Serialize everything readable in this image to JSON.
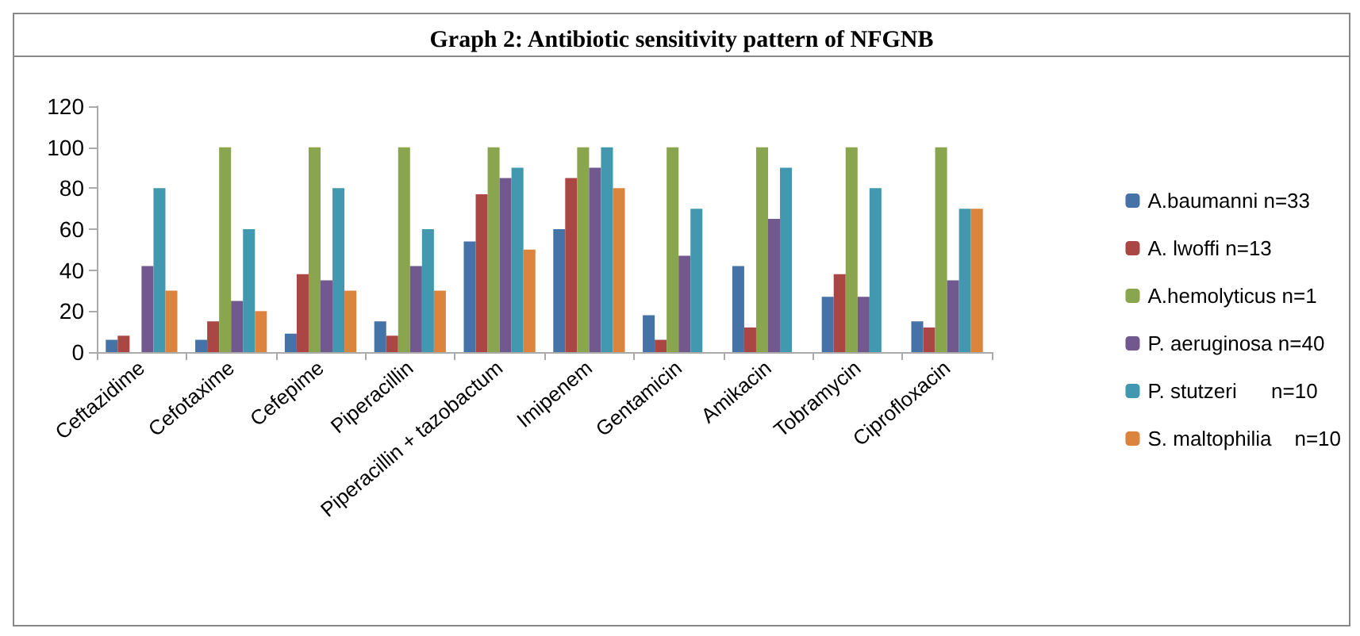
{
  "chart_data": {
    "type": "bar",
    "title": "Graph 2: Antibiotic sensitivity pattern of NFGNB",
    "categories": [
      "Ceftazidime",
      "Cefotaxime",
      "Cefepime",
      "Piperacillin",
      "Piperacillin + tazobactum",
      "Imipenem",
      "Gentamicin",
      "Amikacin",
      "Tobramycin",
      "Ciprofloxacin"
    ],
    "series": [
      {
        "name": "A.baumanni n=33",
        "color": "#4572a7",
        "values": [
          6,
          6,
          9,
          15,
          54,
          60,
          18,
          42,
          27,
          15
        ]
      },
      {
        "name": "A. lwoffi n=13",
        "color": "#aa4643",
        "values": [
          8,
          15,
          38,
          8,
          77,
          85,
          6,
          12,
          38,
          12
        ]
      },
      {
        "name": "A.hemolyticus n=1",
        "color": "#89a54e",
        "values": [
          0,
          100,
          100,
          100,
          100,
          100,
          100,
          100,
          100,
          100
        ]
      },
      {
        "name": "P. aeruginosa n=40",
        "color": "#71588f",
        "values": [
          42,
          25,
          35,
          42,
          85,
          90,
          47,
          65,
          27,
          35
        ]
      },
      {
        "name": "P. stutzeri      n=10",
        "color": "#4198af",
        "values": [
          80,
          60,
          80,
          60,
          90,
          100,
          70,
          90,
          80,
          70
        ]
      },
      {
        "name": "S. maltophilia    n=10",
        "color": "#db843d",
        "values": [
          30,
          20,
          30,
          30,
          50,
          80,
          0,
          0,
          0,
          70
        ]
      }
    ],
    "ylim": [
      0,
      120
    ],
    "yticks": [
      0,
      20,
      40,
      60,
      80,
      100,
      120
    ],
    "grid": false,
    "legend": "right"
  }
}
